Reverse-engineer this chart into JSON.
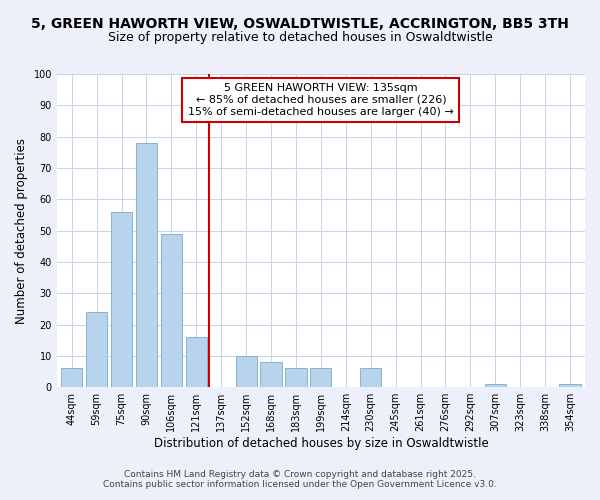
{
  "title": "5, GREEN HAWORTH VIEW, OSWALDTWISTLE, ACCRINGTON, BB5 3TH",
  "subtitle": "Size of property relative to detached houses in Oswaldtwistle",
  "xlabel": "Distribution of detached houses by size in Oswaldtwistle",
  "ylabel": "Number of detached properties",
  "categories": [
    "44sqm",
    "59sqm",
    "75sqm",
    "90sqm",
    "106sqm",
    "121sqm",
    "137sqm",
    "152sqm",
    "168sqm",
    "183sqm",
    "199sqm",
    "214sqm",
    "230sqm",
    "245sqm",
    "261sqm",
    "276sqm",
    "292sqm",
    "307sqm",
    "323sqm",
    "338sqm",
    "354sqm"
  ],
  "values": [
    6,
    24,
    56,
    78,
    49,
    16,
    0,
    10,
    8,
    6,
    6,
    0,
    6,
    0,
    0,
    0,
    0,
    1,
    0,
    0,
    1
  ],
  "bar_color": "#b8d4ec",
  "bar_edge_color": "#7aaace",
  "vline_pos": 5.5,
  "vline_color": "#cc0000",
  "annotation_lines": [
    "5 GREEN HAWORTH VIEW: 135sqm",
    "← 85% of detached houses are smaller (226)",
    "15% of semi-detached houses are larger (40) →"
  ],
  "annotation_box_color": "#ffffff",
  "annotation_box_edge": "#cc0000",
  "ylim": [
    0,
    100
  ],
  "yticks": [
    0,
    10,
    20,
    30,
    40,
    50,
    60,
    70,
    80,
    90,
    100
  ],
  "footer_lines": [
    "Contains HM Land Registry data © Crown copyright and database right 2025.",
    "Contains public sector information licensed under the Open Government Licence v3.0."
  ],
  "bg_color": "#edf0fa",
  "plot_bg_color": "#ffffff",
  "grid_color": "#c8d4e8",
  "title_fontsize": 10,
  "subtitle_fontsize": 9,
  "axis_label_fontsize": 8.5,
  "tick_fontsize": 7,
  "footer_fontsize": 6.5,
  "annotation_fontsize": 8
}
